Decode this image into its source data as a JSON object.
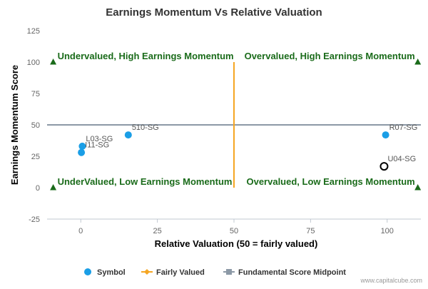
{
  "chart_data": {
    "type": "scatter",
    "title": "Earnings Momentum Vs Relative Valuation",
    "xlabel": "Relative Valuation (50 = fairly valued)",
    "ylabel": "Earnings Momentum Score",
    "xlim": [
      -11,
      111
    ],
    "ylim": [
      -25,
      125
    ],
    "x_ticks": [
      0,
      25,
      50,
      75,
      100
    ],
    "y_ticks": [
      -25,
      0,
      25,
      50,
      75,
      100,
      125
    ],
    "grid": false,
    "legend_position": "bottom",
    "series": [
      {
        "name": "Symbol",
        "color": "#1a9ee6",
        "points": [
          {
            "label": "L03-SG",
            "x": 0.5,
            "y": 33
          },
          {
            "label": "I11-SG",
            "x": 0.2,
            "y": 28
          },
          {
            "label": "510-SG",
            "x": 15.5,
            "y": 42
          },
          {
            "label": "R07-SG",
            "x": 99.5,
            "y": 42
          },
          {
            "label": "U04-SG",
            "x": 99,
            "y": 17,
            "highlighted": true
          }
        ]
      },
      {
        "name": "Fairly Valued",
        "color": "#f5a623",
        "points": [
          {
            "x": 50,
            "y": 0
          },
          {
            "x": 50,
            "y": 100
          }
        ]
      },
      {
        "name": "Fundamental Score Midpoint",
        "color": "#8c99a6",
        "points": [
          {
            "x": -11,
            "y": 50
          },
          {
            "x": 111,
            "y": 50
          }
        ]
      }
    ],
    "quadrant_labels": [
      {
        "text": "Undervalued, High Earnings Momentum",
        "position": "top-left"
      },
      {
        "text": "Overvalued, High Earnings Momentum",
        "position": "top-right"
      },
      {
        "text": "UnderValued, Low Earnings Momentum",
        "position": "bottom-left"
      },
      {
        "text": "Overvalued, Low Earnings Momentum",
        "position": "bottom-right"
      }
    ],
    "corner_markers_color": "#1a6b1a"
  },
  "credit": "www.capitalcube.com"
}
